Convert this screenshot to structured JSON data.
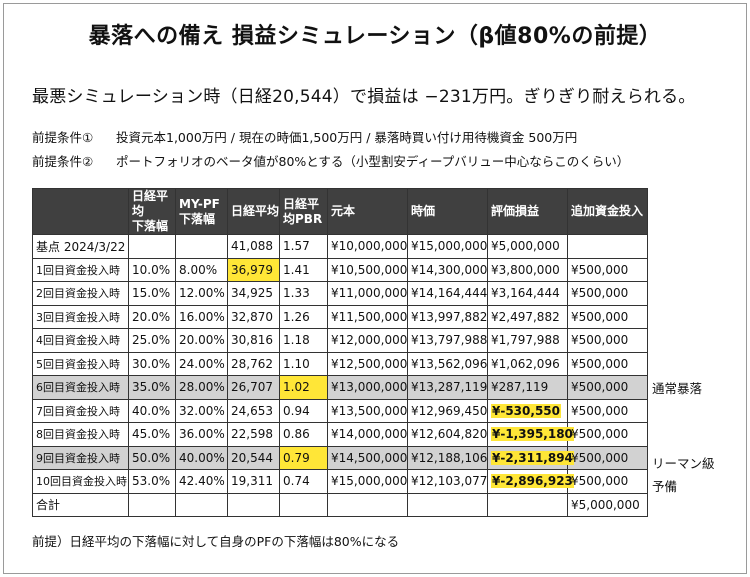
{
  "title": "暴落への備え 損益シミュレーション（β値80%の前提）",
  "lead": "最悪シミュレーション時（日経20,544）で損益は −231万円。ぎりぎり耐えられる。",
  "conditions": [
    {
      "label": "前提条件①",
      "text": "投資元本1,000万円 / 現在の時価1,500万円 / 暴落時買い付け用待機資金 500万円"
    },
    {
      "label": "前提条件②",
      "text": "ポートフォリオのベータ値が80%とする（小型割安ディープバリュー中心ならこのくらい）"
    }
  ],
  "table": {
    "headers": [
      "日経平均\n下落幅",
      "MY-PF\n下落幅",
      "日経平均",
      "日経平\n均PBR",
      "元本",
      "時価",
      "評価損益",
      "追加資金投入"
    ],
    "rows": [
      [
        "基点 2024/3/22",
        "",
        "",
        "41,088",
        "1.57",
        "¥10,000,000",
        "¥15,000,000",
        "¥5,000,000",
        ""
      ],
      [
        "1回目資金投入時",
        "10.0%",
        "8.00%",
        "36,979",
        "1.41",
        "¥10,500,000",
        "¥14,300,000",
        "¥3,800,000",
        "¥500,000"
      ],
      [
        "2回目資金投入時",
        "15.0%",
        "12.00%",
        "34,925",
        "1.33",
        "¥11,000,000",
        "¥14,164,444",
        "¥3,164,444",
        "¥500,000"
      ],
      [
        "3回目資金投入時",
        "20.0%",
        "16.00%",
        "32,870",
        "1.26",
        "¥11,500,000",
        "¥13,997,882",
        "¥2,497,882",
        "¥500,000"
      ],
      [
        "4回目資金投入時",
        "25.0%",
        "20.00%",
        "30,816",
        "1.18",
        "¥12,000,000",
        "¥13,797,988",
        "¥1,797,988",
        "¥500,000"
      ],
      [
        "5回目資金投入時",
        "30.0%",
        "24.00%",
        "28,762",
        "1.10",
        "¥12,500,000",
        "¥13,562,096",
        "¥1,062,096",
        "¥500,000"
      ],
      [
        "6回目資金投入時",
        "35.0%",
        "28.00%",
        "26,707",
        "1.02",
        "¥13,000,000",
        "¥13,287,119",
        "¥287,119",
        "¥500,000"
      ],
      [
        "7回目資金投入時",
        "40.0%",
        "32.00%",
        "24,653",
        "0.94",
        "¥13,500,000",
        "¥12,969,450",
        "¥-530,550",
        "¥500,000"
      ],
      [
        "8回目資金投入時",
        "45.0%",
        "36.00%",
        "22,598",
        "0.86",
        "¥14,000,000",
        "¥12,604,820",
        "¥-1,395,180",
        "¥500,000"
      ],
      [
        "9回目資金投入時",
        "50.0%",
        "40.00%",
        "20,544",
        "0.79",
        "¥14,500,000",
        "¥12,188,106",
        "¥-2,311,894",
        "¥500,000"
      ],
      [
        "10回目資金投入時",
        "53.0%",
        "42.40%",
        "19,311",
        "0.74",
        "¥15,000,000",
        "¥12,103,077",
        "¥-2,896,923",
        "¥500,000"
      ],
      [
        "合計",
        "",
        "",
        "",
        "",
        "",
        "",
        "",
        "¥5,000,000"
      ]
    ]
  },
  "notes": {
    "normal_crash": "通常暴落",
    "lehman_1": "リーマン級",
    "lehman_2": "予備"
  },
  "footnote": "前提）日経平均の下落幅に対して自身のPFの下落幅は80%になる",
  "colors": {
    "header_bg": "#404040",
    "row_shade": "#d2d2d2",
    "highlight": "#ffe637"
  }
}
